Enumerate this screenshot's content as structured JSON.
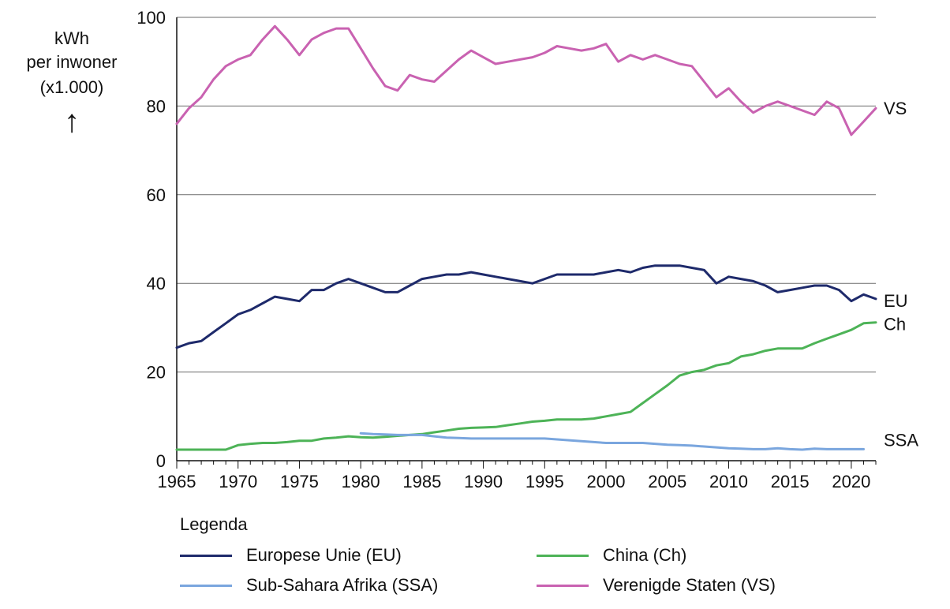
{
  "chart_data": {
    "type": "line",
    "title": "",
    "xlabel": "",
    "ylabel_lines": [
      "kWh",
      "per inwoner",
      "(x1.000)"
    ],
    "ylabel_arrow": "↑",
    "xlim": [
      1965,
      2022
    ],
    "ylim": [
      0,
      100
    ],
    "xticks": [
      1965,
      1970,
      1975,
      1980,
      1985,
      1990,
      1995,
      2000,
      2005,
      2010,
      2015,
      2020
    ],
    "yticks": [
      0,
      20,
      40,
      60,
      80,
      100
    ],
    "grid": "horizontal",
    "series": [
      {
        "key": "vs",
        "name": "Verenigde Staten (VS)",
        "end_label": "VS",
        "color": "#c962b1",
        "x": [
          1965,
          1966,
          1967,
          1968,
          1969,
          1970,
          1971,
          1972,
          1973,
          1974,
          1975,
          1976,
          1977,
          1978,
          1979,
          1980,
          1981,
          1982,
          1983,
          1984,
          1985,
          1986,
          1987,
          1988,
          1989,
          1990,
          1991,
          1992,
          1993,
          1994,
          1995,
          1996,
          1997,
          1998,
          1999,
          2000,
          2001,
          2002,
          2003,
          2004,
          2005,
          2006,
          2007,
          2008,
          2009,
          2010,
          2011,
          2012,
          2013,
          2014,
          2015,
          2016,
          2017,
          2018,
          2019,
          2020,
          2021,
          2022
        ],
        "y": [
          76,
          79.5,
          82,
          86,
          89,
          90.5,
          91.5,
          95,
          98,
          95,
          91.5,
          95,
          96.5,
          97.5,
          97.5,
          93,
          88.5,
          84.5,
          83.5,
          87,
          86,
          85.5,
          88,
          90.5,
          92.5,
          91,
          89.5,
          90,
          90.5,
          91,
          92,
          93.5,
          93,
          92.5,
          93,
          94,
          90,
          91.5,
          90.5,
          91.5,
          90.5,
          89.5,
          89,
          85.5,
          82,
          84,
          81,
          78.5,
          80,
          81,
          80,
          79,
          78,
          81,
          79.5,
          73.5,
          76.5,
          79.5
        ]
      },
      {
        "key": "eu",
        "name": "Europese Unie (EU)",
        "end_label": "EU",
        "color": "#1e2a6b",
        "x": [
          1965,
          1966,
          1967,
          1968,
          1969,
          1970,
          1971,
          1972,
          1973,
          1974,
          1975,
          1976,
          1977,
          1978,
          1979,
          1980,
          1981,
          1982,
          1983,
          1984,
          1985,
          1986,
          1987,
          1988,
          1989,
          1990,
          1991,
          1992,
          1993,
          1994,
          1995,
          1996,
          1997,
          1998,
          1999,
          2000,
          2001,
          2002,
          2003,
          2004,
          2005,
          2006,
          2007,
          2008,
          2009,
          2010,
          2011,
          2012,
          2013,
          2014,
          2015,
          2016,
          2017,
          2018,
          2019,
          2020,
          2021,
          2022
        ],
        "y": [
          25.5,
          26.5,
          27,
          29,
          31,
          33,
          34,
          35.5,
          37,
          36.5,
          36,
          38.5,
          38.5,
          40,
          41,
          40,
          39,
          38,
          38,
          39.5,
          41,
          41.5,
          42,
          42,
          42.5,
          42,
          41.5,
          41,
          40.5,
          40,
          41,
          42,
          42,
          42,
          42,
          42.5,
          43,
          42.5,
          43.5,
          44,
          44,
          44,
          43.5,
          43,
          40,
          41.5,
          41,
          40.5,
          39.5,
          38,
          38.5,
          39,
          39.5,
          39.5,
          38.5,
          36,
          37.5,
          36.5
        ]
      },
      {
        "key": "ch",
        "name": "China (Ch)",
        "end_label": "Ch",
        "color": "#4db357",
        "x": [
          1965,
          1966,
          1967,
          1968,
          1969,
          1970,
          1971,
          1972,
          1973,
          1974,
          1975,
          1976,
          1977,
          1978,
          1979,
          1980,
          1981,
          1982,
          1983,
          1984,
          1985,
          1986,
          1987,
          1988,
          1989,
          1990,
          1991,
          1992,
          1993,
          1994,
          1995,
          1996,
          1997,
          1998,
          1999,
          2000,
          2001,
          2002,
          2003,
          2004,
          2005,
          2006,
          2007,
          2008,
          2009,
          2010,
          2011,
          2012,
          2013,
          2014,
          2015,
          2016,
          2017,
          2018,
          2019,
          2020,
          2021,
          2022
        ],
        "y": [
          2.5,
          2.5,
          2.5,
          2.5,
          2.5,
          3.5,
          3.8,
          4,
          4,
          4.2,
          4.5,
          4.5,
          5,
          5.2,
          5.5,
          5.3,
          5.2,
          5.4,
          5.6,
          5.8,
          6,
          6.4,
          6.8,
          7.2,
          7.4,
          7.5,
          7.6,
          8,
          8.4,
          8.8,
          9,
          9.3,
          9.3,
          9.3,
          9.5,
          10,
          10.5,
          11,
          13,
          15,
          17,
          19.2,
          20,
          20.5,
          21.5,
          22,
          23.5,
          24,
          24.8,
          25.3,
          25.3,
          25.3,
          26.5,
          27.5,
          28.5,
          29.5,
          31,
          31.2
        ]
      },
      {
        "key": "ssa",
        "name": "Sub-Sahara Afrika (SSA)",
        "end_label": "SSA",
        "color": "#7aa6de",
        "x": [
          1980,
          1981,
          1982,
          1983,
          1984,
          1985,
          1986,
          1987,
          1988,
          1989,
          1990,
          1991,
          1992,
          1993,
          1994,
          1995,
          1996,
          1997,
          1998,
          1999,
          2000,
          2001,
          2002,
          2003,
          2004,
          2005,
          2006,
          2007,
          2008,
          2009,
          2010,
          2011,
          2012,
          2013,
          2014,
          2015,
          2016,
          2017,
          2018,
          2019,
          2020,
          2021
        ],
        "y": [
          6.2,
          6,
          5.9,
          5.8,
          5.8,
          5.8,
          5.5,
          5.2,
          5.1,
          5,
          5,
          5,
          5,
          5,
          5,
          5,
          4.8,
          4.6,
          4.4,
          4.2,
          4,
          4,
          4,
          4,
          3.8,
          3.6,
          3.5,
          3.4,
          3.2,
          3,
          2.8,
          2.7,
          2.6,
          2.6,
          2.8,
          2.6,
          2.5,
          2.7,
          2.6,
          2.6,
          2.6,
          2.6
        ]
      }
    ]
  },
  "legend": {
    "title": "Legenda",
    "items": [
      {
        "label": "Europese Unie (EU)",
        "color": "#1e2a6b"
      },
      {
        "label": "China (Ch)",
        "color": "#4db357"
      },
      {
        "label": "Sub-Sahara Afrika (SSA)",
        "color": "#7aa6de"
      },
      {
        "label": "Verenigde Staten (VS)",
        "color": "#c962b1"
      }
    ]
  }
}
